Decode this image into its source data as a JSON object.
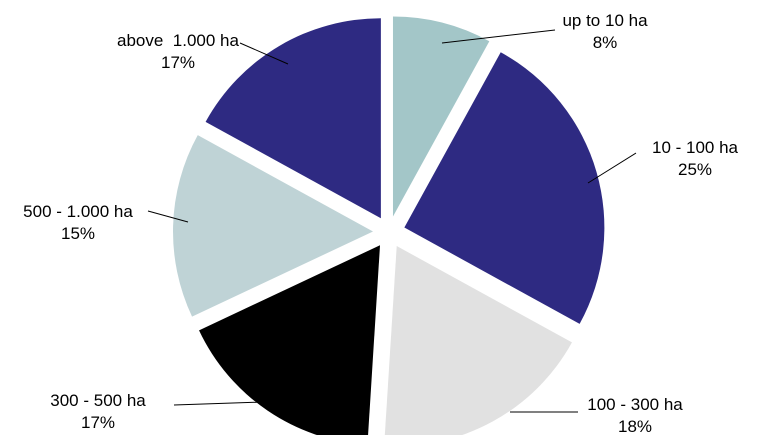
{
  "chart_data": {
    "type": "pie",
    "exploded": true,
    "start": "12 o'clock",
    "direction": "clockwise",
    "legend": "none",
    "slices": [
      {
        "label": "up to 10 ha",
        "percent_label": "8%",
        "value": 8,
        "color": "#a3c6c8"
      },
      {
        "label": "10 - 100 ha",
        "percent_label": "25%",
        "value": 25,
        "color": "#2e2a82"
      },
      {
        "label": "100 - 300 ha",
        "percent_label": "18%",
        "value": 18,
        "color": "#e1e1e1"
      },
      {
        "label": "300 - 500 ha",
        "percent_label": "17%",
        "value": 17,
        "color": "#000000"
      },
      {
        "label": "500 - 1.000 ha",
        "percent_label": "15%",
        "value": 15,
        "color": "#bfd3d6"
      },
      {
        "label": "above  1.000 ha",
        "percent_label": "17%",
        "value": 17,
        "color": "#2e2a82"
      }
    ]
  }
}
